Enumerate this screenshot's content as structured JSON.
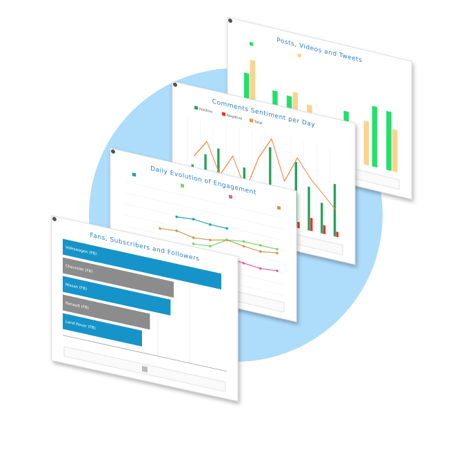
{
  "cards": [
    {
      "type": "grouped-bar",
      "title": "Posts, Videos and Tweets",
      "ylim": [
        0,
        100
      ],
      "series": [
        {
          "color": "#22e06b",
          "values": [
            75,
            0,
            62,
            60,
            0,
            28,
            25,
            58,
            0,
            72,
            70
          ]
        },
        {
          "color": "#fcd38c",
          "values": [
            92,
            0,
            0,
            66,
            55,
            0,
            0,
            0,
            52,
            0,
            50
          ]
        }
      ]
    },
    {
      "type": "bar-line",
      "title": "Comments Sentiment per Day",
      "ylim": [
        0,
        100
      ],
      "series": [
        {
          "name": "Positive",
          "color": "#27a05a",
          "values": [
            45,
            60,
            70,
            30,
            55,
            20,
            85,
            40,
            75,
            50,
            35,
            60
          ]
        },
        {
          "name": "Negative",
          "color": "#e8332a",
          "values": [
            8,
            12,
            6,
            10,
            14,
            5,
            9,
            12,
            7,
            15,
            10,
            6
          ]
        },
        {
          "name": "Total",
          "color": "#f7894a",
          "values": [
            55,
            75,
            40,
            65,
            30,
            70,
            95,
            50,
            80,
            60,
            45,
            30
          ]
        }
      ]
    },
    {
      "type": "line",
      "title": "Daily Evolution of Engagement",
      "ylim": [
        0,
        100
      ],
      "series": [
        {
          "color": "#1aa3b0",
          "values": [
            null,
            70,
            72,
            70,
            70,
            null,
            null,
            null
          ]
        },
        {
          "color": "#7ad36b",
          "values": [
            null,
            null,
            40,
            42,
            55,
            58,
            58,
            58
          ]
        },
        {
          "color": "#e55ba9",
          "values": [
            25,
            28,
            30,
            30,
            32,
            30,
            28,
            30
          ]
        },
        {
          "color": "#c89a4d",
          "values": [
            50,
            52,
            48,
            50,
            55,
            52,
            50,
            53
          ]
        }
      ]
    },
    {
      "type": "hbar",
      "title": "Fans, Subscribers and Followers",
      "xlim": [
        0,
        100
      ],
      "categories": [
        "Volkswagen (FB)",
        "Chevrolet (FB)",
        "Nissan (FB)",
        "Renault (FB)",
        "Land Rover (FB)"
      ],
      "values": [
        100,
        70,
        68,
        55,
        50
      ],
      "colors": [
        "#1694c9",
        "#8c8c8c",
        "#1694c9",
        "#8c8c8c",
        "#1694c9"
      ]
    }
  ]
}
